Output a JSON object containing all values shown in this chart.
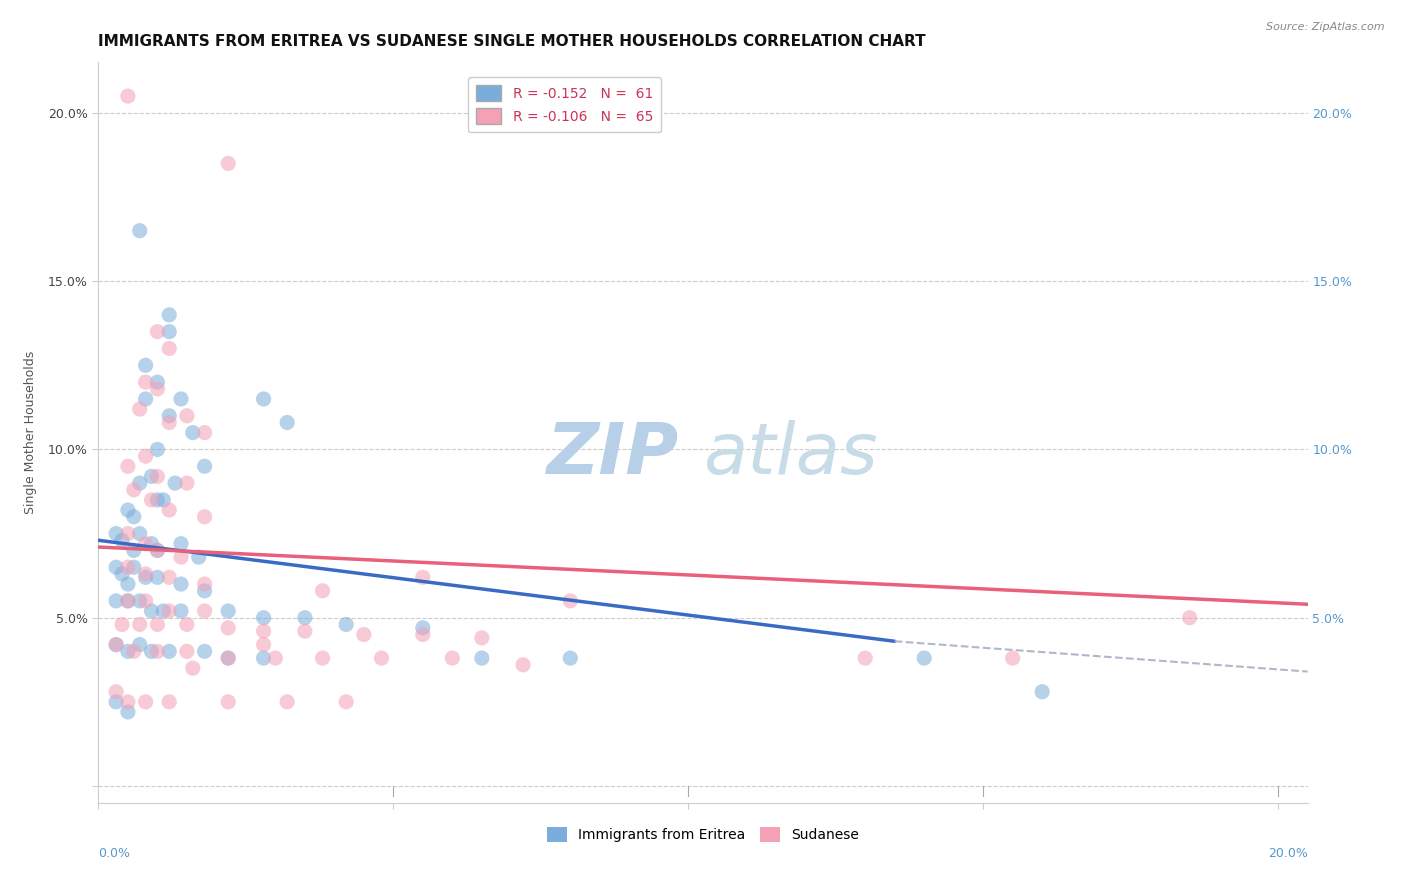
{
  "title": "IMMIGRANTS FROM ERITREA VS SUDANESE SINGLE MOTHER HOUSEHOLDS CORRELATION CHART",
  "source": "Source: ZipAtlas.com",
  "ylabel": "Single Mother Households",
  "watermark_zip": "ZIP",
  "watermark_atlas": "atlas",
  "xlim": [
    0.0,
    0.205
  ],
  "ylim": [
    -0.005,
    0.215
  ],
  "xticks": [
    0.0,
    0.05,
    0.1,
    0.15,
    0.2
  ],
  "yticks": [
    0.0,
    0.05,
    0.1,
    0.15,
    0.2
  ],
  "xticklabels_bottom": [
    "0.0%",
    "",
    "",
    "",
    "20.0%"
  ],
  "yticklabels_left": [
    "",
    "5.0%",
    "10.0%",
    "15.0%",
    "20.0%"
  ],
  "right_yticks": [
    0.05,
    0.1,
    0.15,
    0.2
  ],
  "right_yticklabels": [
    "5.0%",
    "10.0%",
    "15.0%",
    "20.0%"
  ],
  "blue_scatter": [
    [
      0.007,
      0.165
    ],
    [
      0.012,
      0.135
    ],
    [
      0.012,
      0.14
    ],
    [
      0.008,
      0.125
    ],
    [
      0.01,
      0.12
    ],
    [
      0.008,
      0.115
    ],
    [
      0.014,
      0.115
    ],
    [
      0.012,
      0.11
    ],
    [
      0.016,
      0.105
    ],
    [
      0.01,
      0.1
    ],
    [
      0.018,
      0.095
    ],
    [
      0.007,
      0.09
    ],
    [
      0.009,
      0.092
    ],
    [
      0.013,
      0.09
    ],
    [
      0.01,
      0.085
    ],
    [
      0.011,
      0.085
    ],
    [
      0.005,
      0.082
    ],
    [
      0.006,
      0.08
    ],
    [
      0.028,
      0.115
    ],
    [
      0.032,
      0.108
    ],
    [
      0.003,
      0.075
    ],
    [
      0.004,
      0.073
    ],
    [
      0.007,
      0.075
    ],
    [
      0.009,
      0.072
    ],
    [
      0.006,
      0.07
    ],
    [
      0.01,
      0.07
    ],
    [
      0.014,
      0.072
    ],
    [
      0.017,
      0.068
    ],
    [
      0.003,
      0.065
    ],
    [
      0.004,
      0.063
    ],
    [
      0.006,
      0.065
    ],
    [
      0.005,
      0.06
    ],
    [
      0.008,
      0.062
    ],
    [
      0.01,
      0.062
    ],
    [
      0.014,
      0.06
    ],
    [
      0.018,
      0.058
    ],
    [
      0.003,
      0.055
    ],
    [
      0.005,
      0.055
    ],
    [
      0.007,
      0.055
    ],
    [
      0.009,
      0.052
    ],
    [
      0.011,
      0.052
    ],
    [
      0.014,
      0.052
    ],
    [
      0.022,
      0.052
    ],
    [
      0.028,
      0.05
    ],
    [
      0.035,
      0.05
    ],
    [
      0.042,
      0.048
    ],
    [
      0.055,
      0.047
    ],
    [
      0.003,
      0.042
    ],
    [
      0.005,
      0.04
    ],
    [
      0.007,
      0.042
    ],
    [
      0.009,
      0.04
    ],
    [
      0.012,
      0.04
    ],
    [
      0.018,
      0.04
    ],
    [
      0.022,
      0.038
    ],
    [
      0.028,
      0.038
    ],
    [
      0.065,
      0.038
    ],
    [
      0.08,
      0.038
    ],
    [
      0.003,
      0.025
    ],
    [
      0.005,
      0.022
    ],
    [
      0.14,
      0.038
    ],
    [
      0.16,
      0.028
    ]
  ],
  "pink_scatter": [
    [
      0.005,
      0.205
    ],
    [
      0.022,
      0.185
    ],
    [
      0.01,
      0.135
    ],
    [
      0.012,
      0.13
    ],
    [
      0.008,
      0.12
    ],
    [
      0.01,
      0.118
    ],
    [
      0.007,
      0.112
    ],
    [
      0.015,
      0.11
    ],
    [
      0.012,
      0.108
    ],
    [
      0.018,
      0.105
    ],
    [
      0.008,
      0.098
    ],
    [
      0.005,
      0.095
    ],
    [
      0.01,
      0.092
    ],
    [
      0.015,
      0.09
    ],
    [
      0.006,
      0.088
    ],
    [
      0.009,
      0.085
    ],
    [
      0.012,
      0.082
    ],
    [
      0.018,
      0.08
    ],
    [
      0.005,
      0.075
    ],
    [
      0.008,
      0.072
    ],
    [
      0.01,
      0.07
    ],
    [
      0.014,
      0.068
    ],
    [
      0.005,
      0.065
    ],
    [
      0.008,
      0.063
    ],
    [
      0.012,
      0.062
    ],
    [
      0.018,
      0.06
    ],
    [
      0.005,
      0.055
    ],
    [
      0.008,
      0.055
    ],
    [
      0.012,
      0.052
    ],
    [
      0.018,
      0.052
    ],
    [
      0.004,
      0.048
    ],
    [
      0.007,
      0.048
    ],
    [
      0.01,
      0.048
    ],
    [
      0.015,
      0.048
    ],
    [
      0.022,
      0.047
    ],
    [
      0.028,
      0.046
    ],
    [
      0.035,
      0.046
    ],
    [
      0.045,
      0.045
    ],
    [
      0.055,
      0.045
    ],
    [
      0.065,
      0.044
    ],
    [
      0.055,
      0.062
    ],
    [
      0.08,
      0.055
    ],
    [
      0.003,
      0.042
    ],
    [
      0.006,
      0.04
    ],
    [
      0.01,
      0.04
    ],
    [
      0.015,
      0.04
    ],
    [
      0.022,
      0.038
    ],
    [
      0.03,
      0.038
    ],
    [
      0.038,
      0.038
    ],
    [
      0.048,
      0.038
    ],
    [
      0.06,
      0.038
    ],
    [
      0.072,
      0.036
    ],
    [
      0.003,
      0.028
    ],
    [
      0.005,
      0.025
    ],
    [
      0.008,
      0.025
    ],
    [
      0.012,
      0.025
    ],
    [
      0.13,
      0.038
    ],
    [
      0.155,
      0.038
    ],
    [
      0.185,
      0.05
    ],
    [
      0.022,
      0.025
    ],
    [
      0.032,
      0.025
    ],
    [
      0.042,
      0.025
    ],
    [
      0.016,
      0.035
    ],
    [
      0.028,
      0.042
    ],
    [
      0.038,
      0.058
    ]
  ],
  "blue_line_solid": {
    "x0": 0.0,
    "x1": 0.135,
    "y0": 0.073,
    "y1": 0.043
  },
  "blue_line_dashed": {
    "x0": 0.135,
    "x1": 0.205,
    "y0": 0.043,
    "y1": 0.034
  },
  "pink_line": {
    "x0": 0.0,
    "x1": 0.205,
    "y0": 0.071,
    "y1": 0.054
  },
  "blue_color": "#7aaddb",
  "pink_color": "#f4a0b5",
  "blue_line_color": "#3a6bc4",
  "pink_line_color": "#e8607a",
  "dashed_color": "#b0b8c8",
  "background_color": "#ffffff",
  "grid_color": "#cccccc",
  "title_fontsize": 11,
  "axis_label_fontsize": 9,
  "tick_fontsize": 9,
  "watermark_fontsize_zip": 52,
  "watermark_fontsize_atlas": 52,
  "watermark_color": "#dce8f0",
  "scatter_size": 120,
  "scatter_alpha": 0.55,
  "legend_blue_label": "R = -0.152   N =  61",
  "legend_pink_label": "R = -0.106   N =  65",
  "bottom_legend_blue": "Immigrants from Eritrea",
  "bottom_legend_pink": "Sudanese"
}
